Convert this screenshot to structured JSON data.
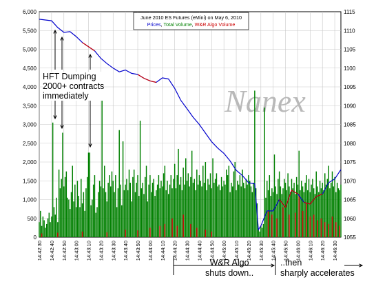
{
  "chart_data": {
    "type": "bar",
    "title": "June 2010 ES Futures (eMini) on May 6, 2010",
    "subtitle_parts": [
      {
        "text": "Prices",
        "color": "#0000cc"
      },
      {
        "text": ", ",
        "color": "#000000"
      },
      {
        "text": "Total Volume",
        "color": "#008000"
      },
      {
        "text": ", ",
        "color": "#000000"
      },
      {
        "text": "W&R Algo Volume",
        "color": "#cc0000"
      }
    ],
    "watermark": "Nanex",
    "colors": {
      "price": "#0000cc",
      "price_algo": "#cc0000",
      "total_volume": "#008000",
      "algo_volume": "#cc0000"
    },
    "y_left": {
      "min": 0,
      "max": 6000,
      "ticks": [
        "0",
        "500",
        "1,000",
        "1,500",
        "2,000",
        "2,500",
        "3,000",
        "3,500",
        "4,000",
        "4,500",
        "5,000",
        "5,500",
        "6,000"
      ]
    },
    "y_right": {
      "min": 1055,
      "max": 1115,
      "ticks": [
        "1055",
        "1060",
        "1065",
        "1070",
        "1075",
        "1080",
        "1085",
        "1090",
        "1095",
        "1100",
        "1105",
        "1110",
        "1115"
      ]
    },
    "x_ticks": [
      "14:42:30",
      "14:42:40",
      "14:42:50",
      "14:43:00",
      "14:43:10",
      "14:43:20",
      "14:43:30",
      "14:43:40",
      "14:43:50",
      "14:44:00",
      "14:44:10",
      "14:44:20",
      "14:44:30",
      "14:44:40",
      "14:44:50",
      "14:45:00",
      "14:45:10",
      "14:45:20",
      "14:45:30",
      "14:45:40",
      "14:45:50",
      "14:46:00",
      "14:46:10",
      "14:46:20",
      "14:46:30"
    ],
    "x_range": [
      "14:42:30",
      "14:46:35"
    ],
    "grid": true,
    "price_series": [
      [
        "14:42:30",
        1113.0
      ],
      [
        "14:42:35",
        1112.8
      ],
      [
        "14:42:40",
        1112.6
      ],
      [
        "14:42:45",
        1110.8
      ],
      [
        "14:42:50",
        1109.5
      ],
      [
        "14:42:55",
        1109.7
      ],
      [
        "14:43:00",
        1108.4
      ],
      [
        "14:43:05",
        1106.8
      ],
      [
        "14:43:10",
        1105.7
      ],
      [
        "14:43:15",
        1104.6
      ],
      [
        "14:43:20",
        1102.6
      ],
      [
        "14:43:25",
        1101.2
      ],
      [
        "14:43:30",
        1100.0
      ],
      [
        "14:43:35",
        1099.0
      ],
      [
        "14:43:40",
        1099.5
      ],
      [
        "14:43:45",
        1098.6
      ],
      [
        "14:43:50",
        1098.3
      ],
      [
        "14:43:55",
        1097.3
      ],
      [
        "14:44:00",
        1096.6
      ],
      [
        "14:44:05",
        1096.2
      ],
      [
        "14:44:10",
        1097.4
      ],
      [
        "14:44:15",
        1097.1
      ],
      [
        "14:44:20",
        1094.6
      ],
      [
        "14:44:25",
        1091.4
      ],
      [
        "14:44:30",
        1089.2
      ],
      [
        "14:44:35",
        1086.9
      ],
      [
        "14:44:40",
        1085.0
      ],
      [
        "14:44:45",
        1082.7
      ],
      [
        "14:44:50",
        1080.4
      ],
      [
        "14:44:55",
        1078.7
      ],
      [
        "14:45:00",
        1077.3
      ],
      [
        "14:45:05",
        1075.3
      ],
      [
        "14:45:10",
        1072.8
      ],
      [
        "14:45:15",
        1071.4
      ],
      [
        "14:45:20",
        1069.5
      ],
      [
        "14:45:25",
        1069.2
      ],
      [
        "14:45:28",
        1057.0
      ],
      [
        "14:45:30",
        1058.0
      ],
      [
        "14:45:35",
        1062.0
      ],
      [
        "14:45:40",
        1062.0
      ],
      [
        "14:45:45",
        1065.0
      ],
      [
        "14:45:50",
        1063.0
      ],
      [
        "14:45:55",
        1067.5
      ],
      [
        "14:46:00",
        1066.5
      ],
      [
        "14:46:05",
        1064.3
      ],
      [
        "14:46:10",
        1063.8
      ],
      [
        "14:46:15",
        1065.8
      ],
      [
        "14:46:20",
        1066.5
      ],
      [
        "14:46:25",
        1069.5
      ],
      [
        "14:46:30",
        1070.5
      ],
      [
        "14:46:35",
        1073.0
      ]
    ],
    "volume_series": [
      [
        "14:42:30",
        400
      ],
      [
        "14:42:31",
        700
      ],
      [
        "14:42:32",
        300
      ],
      [
        "14:42:33",
        550
      ],
      [
        "14:42:34",
        450
      ],
      [
        "14:42:35",
        250
      ],
      [
        "14:42:36",
        350
      ],
      [
        "14:42:37",
        500
      ],
      [
        "14:42:38",
        650
      ],
      [
        "14:42:39",
        400
      ],
      [
        "14:42:40",
        550
      ],
      [
        "14:42:41",
        3050
      ],
      [
        "14:42:42",
        800
      ],
      [
        "14:42:43",
        600
      ],
      [
        "14:42:44",
        1050
      ],
      [
        "14:42:45",
        400
      ],
      [
        "14:42:46",
        1800
      ],
      [
        "14:42:47",
        1300
      ],
      [
        "14:42:48",
        1550
      ],
      [
        "14:42:49",
        2780
      ],
      [
        "14:42:50",
        1350
      ],
      [
        "14:42:51",
        1600
      ],
      [
        "14:42:52",
        1750
      ],
      [
        "14:42:53",
        1050
      ],
      [
        "14:42:54",
        1000
      ],
      [
        "14:42:55",
        750
      ],
      [
        "14:42:56",
        1200
      ],
      [
        "14:42:57",
        1900
      ],
      [
        "14:42:58",
        950
      ],
      [
        "14:42:59",
        1400
      ],
      [
        "14:43:00",
        800
      ],
      [
        "14:43:01",
        1500
      ],
      [
        "14:43:02",
        1100
      ],
      [
        "14:43:03",
        800
      ],
      [
        "14:43:04",
        1550
      ],
      [
        "14:43:05",
        900
      ],
      [
        "14:43:06",
        1200
      ],
      [
        "14:43:07",
        700
      ],
      [
        "14:43:08",
        1300
      ],
      [
        "14:43:09",
        1600
      ],
      [
        "14:43:10",
        2250
      ],
      [
        "14:43:11",
        2250
      ],
      [
        "14:43:12",
        850
      ],
      [
        "14:43:13",
        1000
      ],
      [
        "14:43:14",
        1400
      ],
      [
        "14:43:15",
        1650
      ],
      [
        "14:43:16",
        650
      ],
      [
        "14:43:17",
        800
      ],
      [
        "14:43:18",
        1200
      ],
      [
        "14:43:19",
        1500
      ],
      [
        "14:43:20",
        1350
      ],
      [
        "14:43:21",
        4400
      ],
      [
        "14:43:22",
        1300
      ],
      [
        "14:43:23",
        1900
      ],
      [
        "14:43:24",
        1200
      ],
      [
        "14:43:25",
        950
      ],
      [
        "14:43:26",
        1450
      ],
      [
        "14:43:27",
        1650
      ],
      [
        "14:43:28",
        1350
      ],
      [
        "14:43:29",
        1750
      ],
      [
        "14:43:30",
        1500
      ],
      [
        "14:43:31",
        1200
      ],
      [
        "14:43:32",
        1650
      ],
      [
        "14:43:33",
        800
      ],
      [
        "14:43:34",
        1300
      ],
      [
        "14:43:35",
        2850
      ],
      [
        "14:43:36",
        1400
      ],
      [
        "14:43:37",
        850
      ],
      [
        "14:43:38",
        2550
      ],
      [
        "14:43:39",
        1250
      ],
      [
        "14:43:40",
        1400
      ],
      [
        "14:43:41",
        1550
      ],
      [
        "14:43:42",
        1250
      ],
      [
        "14:43:43",
        1800
      ],
      [
        "14:43:44",
        1450
      ],
      [
        "14:43:45",
        950
      ],
      [
        "14:43:46",
        1600
      ],
      [
        "14:43:47",
        1800
      ],
      [
        "14:43:48",
        1200
      ],
      [
        "14:43:49",
        1450
      ],
      [
        "14:43:50",
        1650
      ],
      [
        "14:43:51",
        1100
      ],
      [
        "14:43:52",
        3100
      ],
      [
        "14:43:53",
        1300
      ],
      [
        "14:43:54",
        1450
      ],
      [
        "14:43:55",
        1150
      ],
      [
        "14:43:56",
        1600
      ],
      [
        "14:43:57",
        1900
      ],
      [
        "14:43:58",
        950
      ],
      [
        "14:43:59",
        1400
      ],
      [
        "14:44:00",
        1650
      ],
      [
        "14:44:01",
        1200
      ],
      [
        "14:44:02",
        1450
      ],
      [
        "14:44:03",
        1550
      ],
      [
        "14:44:04",
        1100
      ],
      [
        "14:44:05",
        1250
      ],
      [
        "14:44:06",
        1400
      ],
      [
        "14:44:07",
        1650
      ],
      [
        "14:44:08",
        1300
      ],
      [
        "14:44:09",
        1500
      ],
      [
        "14:44:10",
        1350
      ],
      [
        "14:44:11",
        1700
      ],
      [
        "14:44:12",
        1900
      ],
      [
        "14:44:13",
        1250
      ],
      [
        "14:44:14",
        1500
      ],
      [
        "14:44:15",
        1150
      ],
      [
        "14:44:16",
        1400
      ],
      [
        "14:44:17",
        1650
      ],
      [
        "14:44:18",
        1300
      ],
      [
        "14:44:19",
        1550
      ],
      [
        "14:44:20",
        1950
      ],
      [
        "14:44:21",
        1300
      ],
      [
        "14:44:22",
        1650
      ],
      [
        "14:44:23",
        2350
      ],
      [
        "14:44:24",
        1400
      ],
      [
        "14:44:25",
        1600
      ],
      [
        "14:44:26",
        1250
      ],
      [
        "14:44:27",
        1850
      ],
      [
        "14:44:28",
        1400
      ],
      [
        "14:44:29",
        2100
      ],
      [
        "14:44:30",
        1500
      ],
      [
        "14:44:31",
        1700
      ],
      [
        "14:44:32",
        1350
      ],
      [
        "14:44:33",
        1600
      ],
      [
        "14:44:34",
        2300
      ],
      [
        "14:44:35",
        1450
      ],
      [
        "14:44:36",
        1550
      ],
      [
        "14:44:37",
        1250
      ],
      [
        "14:44:38",
        1800
      ],
      [
        "14:44:39",
        1400
      ],
      [
        "14:44:40",
        1650
      ],
      [
        "14:44:41",
        1500
      ],
      [
        "14:44:42",
        1350
      ],
      [
        "14:44:43",
        1900
      ],
      [
        "14:44:44",
        1450
      ],
      [
        "14:44:45",
        2000
      ],
      [
        "14:44:46",
        1250
      ],
      [
        "14:44:47",
        1550
      ],
      [
        "14:44:48",
        1400
      ],
      [
        "14:44:49",
        1700
      ],
      [
        "14:44:50",
        1300
      ],
      [
        "14:44:51",
        2100
      ],
      [
        "14:44:52",
        1450
      ],
      [
        "14:44:53",
        1550
      ],
      [
        "14:44:54",
        1700
      ],
      [
        "14:44:55",
        1350
      ],
      [
        "14:44:56",
        1400
      ],
      [
        "14:44:57",
        1250
      ],
      [
        "14:44:58",
        1600
      ],
      [
        "14:44:59",
        1350
      ],
      [
        "14:45:00",
        1500
      ],
      [
        "14:45:01",
        1400
      ],
      [
        "14:45:02",
        1800
      ],
      [
        "14:45:03",
        1650
      ],
      [
        "14:45:04",
        1900
      ],
      [
        "14:45:05",
        1200
      ],
      [
        "14:45:06",
        1450
      ],
      [
        "14:45:07",
        1350
      ],
      [
        "14:45:08",
        1750
      ],
      [
        "14:45:09",
        2000
      ],
      [
        "14:45:10",
        1250
      ],
      [
        "14:45:11",
        1500
      ],
      [
        "14:45:12",
        1400
      ],
      [
        "14:45:13",
        1650
      ],
      [
        "14:45:14",
        1350
      ],
      [
        "14:45:15",
        1800
      ],
      [
        "14:45:16",
        1450
      ],
      [
        "14:45:17",
        1300
      ],
      [
        "14:45:18",
        1550
      ],
      [
        "14:45:19",
        1400
      ],
      [
        "14:45:20",
        1650
      ],
      [
        "14:45:21",
        1500
      ],
      [
        "14:45:22",
        1350
      ],
      [
        "14:45:23",
        1200
      ],
      [
        "14:45:24",
        1450
      ],
      [
        "14:45:25",
        3900
      ],
      [
        "14:45:26",
        1300
      ],
      [
        "14:45:27",
        900
      ],
      [
        "14:45:28",
        200
      ],
      [
        "14:45:29",
        150
      ],
      [
        "14:45:30",
        300
      ],
      [
        "14:45:31",
        250
      ],
      [
        "14:45:32",
        350
      ],
      [
        "14:45:33",
        3450
      ],
      [
        "14:45:34",
        1050
      ],
      [
        "14:45:35",
        1500
      ],
      [
        "14:45:36",
        1250
      ],
      [
        "14:45:37",
        1650
      ],
      [
        "14:45:38",
        1100
      ],
      [
        "14:45:39",
        1300
      ],
      [
        "14:45:40",
        1200
      ],
      [
        "14:45:41",
        2200
      ],
      [
        "14:45:42",
        1350
      ],
      [
        "14:45:43",
        1150
      ],
      [
        "14:45:44",
        1550
      ],
      [
        "14:45:45",
        1750
      ],
      [
        "14:45:46",
        1350
      ],
      [
        "14:45:47",
        1150
      ],
      [
        "14:45:48",
        1300
      ],
      [
        "14:45:49",
        1550
      ],
      [
        "14:45:50",
        1450
      ],
      [
        "14:45:51",
        1250
      ],
      [
        "14:45:52",
        1700
      ],
      [
        "14:45:53",
        1350
      ],
      [
        "14:45:54",
        1200
      ],
      [
        "14:45:55",
        1550
      ],
      [
        "14:45:56",
        1300
      ],
      [
        "14:45:57",
        1450
      ],
      [
        "14:45:58",
        1150
      ],
      [
        "14:45:59",
        1600
      ],
      [
        "14:46:00",
        1400
      ],
      [
        "14:46:01",
        2300
      ],
      [
        "14:46:02",
        1250
      ],
      [
        "14:46:03",
        1500
      ],
      [
        "14:46:04",
        1350
      ],
      [
        "14:46:05",
        1200
      ],
      [
        "14:46:06",
        1450
      ],
      [
        "14:46:07",
        1650
      ],
      [
        "14:46:08",
        1250
      ],
      [
        "14:46:09",
        1550
      ],
      [
        "14:46:10",
        1200
      ],
      [
        "14:46:11",
        1400
      ],
      [
        "14:46:12",
        1550
      ],
      [
        "14:46:13",
        1300
      ],
      [
        "14:46:14",
        1150
      ],
      [
        "14:46:15",
        1750
      ],
      [
        "14:46:16",
        1350
      ],
      [
        "14:46:17",
        1200
      ],
      [
        "14:46:18",
        1500
      ],
      [
        "14:46:19",
        1300
      ],
      [
        "14:46:20",
        1450
      ],
      [
        "14:46:21",
        1250
      ],
      [
        "14:46:22",
        1700
      ],
      [
        "14:46:23",
        1400
      ],
      [
        "14:46:24",
        1550
      ],
      [
        "14:46:25",
        1900
      ],
      [
        "14:46:26",
        1300
      ],
      [
        "14:46:27",
        1450
      ],
      [
        "14:46:28",
        1750
      ],
      [
        "14:46:29",
        1350
      ],
      [
        "14:46:30",
        1600
      ],
      [
        "14:46:31",
        1200
      ],
      [
        "14:46:32",
        1450
      ],
      [
        "14:46:33",
        1300
      ],
      [
        "14:46:34",
        1250
      ],
      [
        "14:46:35",
        1400
      ]
    ],
    "algo_volume_series": [
      [
        "14:42:32",
        100
      ],
      [
        "14:42:45",
        120
      ],
      [
        "14:43:05",
        150
      ],
      [
        "14:43:25",
        130
      ],
      [
        "14:43:40",
        200
      ],
      [
        "14:43:50",
        180
      ],
      [
        "14:44:00",
        250
      ],
      [
        "14:44:08",
        300
      ],
      [
        "14:44:12",
        350
      ],
      [
        "14:44:18",
        500
      ],
      [
        "14:44:22",
        300
      ],
      [
        "14:44:27",
        600
      ],
      [
        "14:44:33",
        350
      ],
      [
        "14:44:38",
        250
      ],
      [
        "14:44:45",
        200
      ],
      [
        "14:44:50",
        150
      ],
      [
        "14:45:36",
        700
      ],
      [
        "14:45:39",
        600
      ],
      [
        "14:45:43",
        500
      ],
      [
        "14:45:48",
        800
      ],
      [
        "14:45:53",
        600
      ],
      [
        "14:45:58",
        650
      ],
      [
        "14:46:01",
        1150
      ],
      [
        "14:46:04",
        700
      ],
      [
        "14:46:07",
        900
      ],
      [
        "14:46:10",
        550
      ],
      [
        "14:46:13",
        600
      ],
      [
        "14:46:16",
        450
      ],
      [
        "14:46:19",
        500
      ],
      [
        "14:46:22",
        400
      ],
      [
        "14:46:25",
        350
      ],
      [
        "14:46:28",
        550
      ],
      [
        "14:46:31",
        400
      ],
      [
        "14:46:34",
        300
      ]
    ],
    "annotations": [
      {
        "id": "hft",
        "text": "HFT Dumping\n2000+ contracts\nimmediately"
      },
      {
        "id": "shuts_down",
        "text": "W&R Algo\nshuts down.."
      },
      {
        "id": "accelerates",
        "text": "..then\nsharply accelerates"
      }
    ]
  }
}
